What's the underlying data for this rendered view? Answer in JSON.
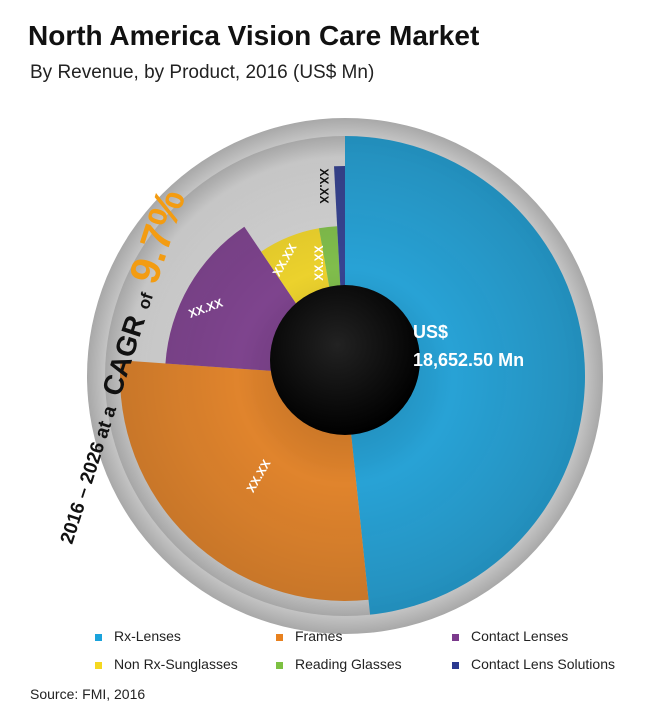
{
  "header": {
    "title": "North America Vision Care Market",
    "subtitle": "By Revenue, by Product, 2016 (US$ Mn)"
  },
  "cagr": {
    "prefix": "2016 – 2026 at a",
    "cagr_word": "CAGR",
    "of_word": "of",
    "value": "9.7%",
    "value_color": "#f39c12"
  },
  "center_label": {
    "line1": "US$",
    "line2": "18,652.50 Mn"
  },
  "chart_data": {
    "type": "pie",
    "title": "North America Vision Care Market",
    "subtitle": "By Revenue, by Product, 2016 (US$ Mn)",
    "legend_position": "bottom",
    "series": [
      {
        "name": "Rx-Lenses",
        "label": "US$ 18,652.50 Mn",
        "value": 18652.5,
        "color": "#1aa3dc"
      },
      {
        "name": "Frames",
        "label": "XX.XX",
        "value": null,
        "color": "#e8811f"
      },
      {
        "name": "Contact Lenses",
        "label": "XX.XX",
        "value": null,
        "color": "#7b3a8c"
      },
      {
        "name": "Non Rx-Sunglasses",
        "label": "XX.XX",
        "value": null,
        "color": "#f5d820"
      },
      {
        "name": "Reading Glasses",
        "label": "XX.XX",
        "value": null,
        "color": "#7dc142"
      },
      {
        "name": "Contact Lens Solutions",
        "label": "XX.XX",
        "value": null,
        "color": "#2b3990"
      }
    ]
  },
  "legend": [
    {
      "label": "Rx-Lenses",
      "color": "#1aa3dc"
    },
    {
      "label": "Frames",
      "color": "#e8811f"
    },
    {
      "label": "Contact Lenses",
      "color": "#7b3a8c"
    },
    {
      "label": "Non Rx-Sunglasses",
      "color": "#f5d820"
    },
    {
      "label": "Reading Glasses",
      "color": "#7dc142"
    },
    {
      "label": "Contact Lens Solutions",
      "color": "#2b3990"
    }
  ],
  "source": "Source: FMI, 2016"
}
